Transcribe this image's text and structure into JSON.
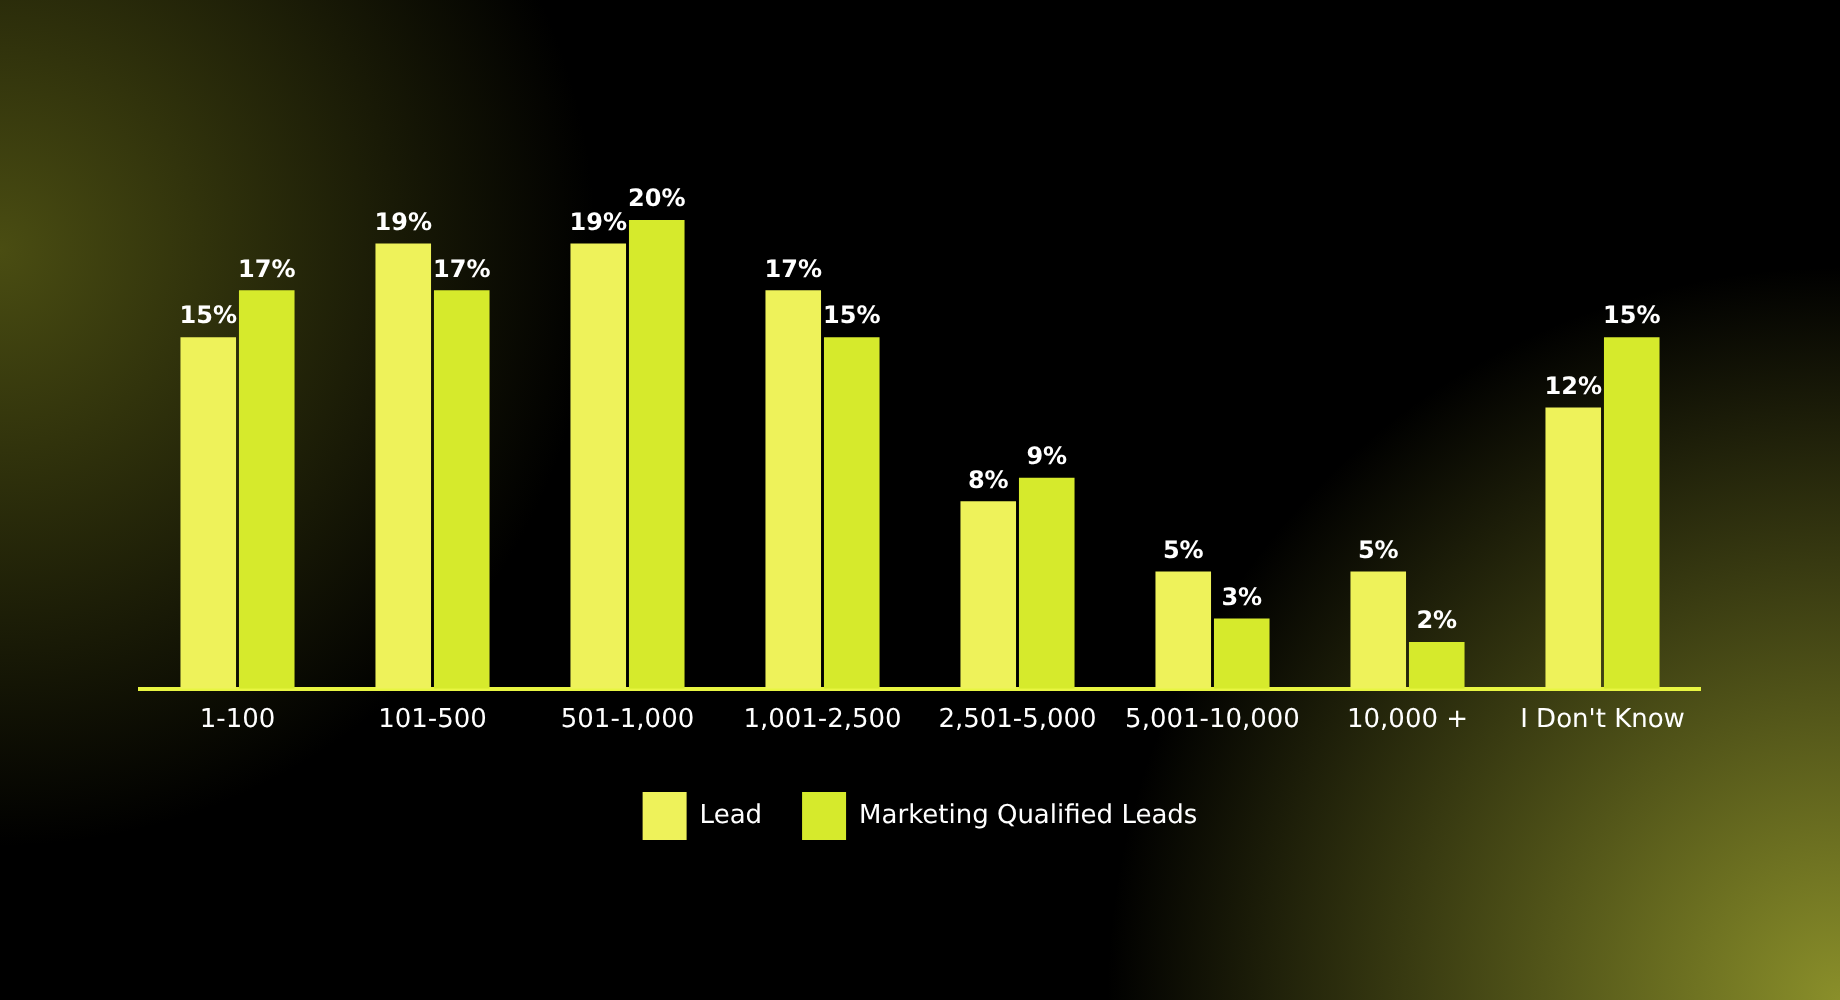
{
  "chart_data": {
    "type": "bar",
    "categories": [
      "1-100",
      "101-500",
      "501-1,000",
      "1,001-2,500",
      "2,501-5,000",
      "5,001-10,000",
      "10,000 +",
      "I Don't Know"
    ],
    "series": [
      {
        "name": "Lead",
        "color": "#eef25a",
        "values": [
          15,
          19,
          19,
          17,
          8,
          5,
          5,
          12
        ],
        "value_labels": [
          "15%",
          "19%",
          "19%",
          "17%",
          "8%",
          "5%",
          "5%",
          "12%"
        ]
      },
      {
        "name": "Marketing Qualified Leads",
        "color": "#d6ea2c",
        "values": [
          17,
          17,
          20,
          15,
          9,
          3,
          2,
          15
        ],
        "value_labels": [
          "17%",
          "17%",
          "20%",
          "15%",
          "9%",
          "3%",
          "2%",
          "15%"
        ]
      }
    ],
    "legend": "bottom",
    "grid": false
  }
}
